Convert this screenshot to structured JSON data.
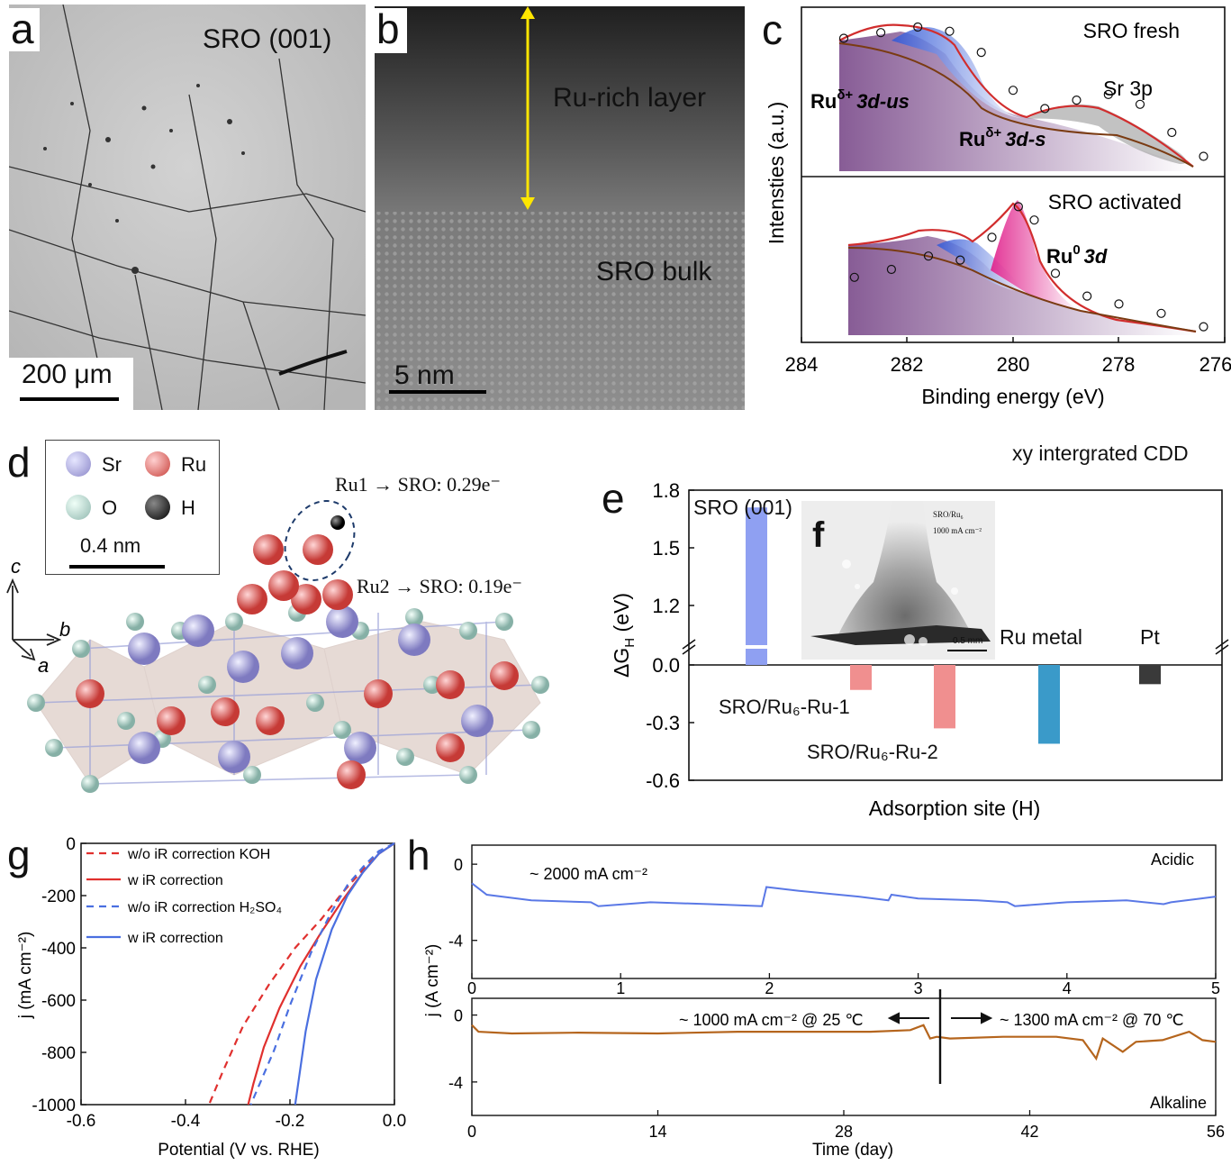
{
  "panels": {
    "a": {
      "letter": "a",
      "title": "SRO (001)",
      "scalebar": "200 μm"
    },
    "b": {
      "letter": "b",
      "top_label": "Ru-rich layer",
      "bottom_label": "SRO bulk",
      "scalebar": "5 nm"
    },
    "c": {
      "letter": "c",
      "top_title": "SRO fresh",
      "bottom_title": "SRO activated",
      "ann_us": "Ru",
      "ann_us_sup": "δ+",
      "ann_us_tail": "3d-us",
      "ann_s": "Ru",
      "ann_s_sup": "δ+",
      "ann_s_tail": "3d-s",
      "ann_sr": "Sr 3p",
      "ann_ru0": "Ru",
      "ann_ru0_sup": "0",
      "ann_ru0_tail": "3d",
      "ylabel": "Intensties (a.u.)",
      "xlabel": "Binding energy (eV)",
      "xticks": [
        "284",
        "282",
        "280",
        "278",
        "276"
      ]
    },
    "d": {
      "letter": "d",
      "legend": [
        "Sr",
        "Ru",
        "O",
        "H"
      ],
      "scalebar": "0.4 nm",
      "ru1": "Ru1 → SRO: 0.29e⁻",
      "ru2": "Ru2 → SRO: 0.19e⁻",
      "axis_c": "c",
      "axis_b": "b",
      "axis_a": "a"
    },
    "e": {
      "letter": "e",
      "header": "xy intergrated CDD",
      "ylabel": "ΔG",
      "ylabel_sub": "H",
      "ylabel_unit": " (eV)",
      "xlabel": "Adsorption site (H)"
    },
    "f": {
      "letter": "f",
      "inset_line1": "SRO/Ru₆",
      "inset_line2": "1000 mA cm⁻²",
      "scalebar": "0.5 mm"
    },
    "g": {
      "letter": "g",
      "ylabel": "j (mA cm⁻²)",
      "xlabel": "Potential (V vs. RHE)",
      "legend": [
        "w/o iR correction  KOH",
        "w iR correction",
        "w/o iR correction H₂SO₄",
        "w iR correction"
      ]
    },
    "h": {
      "letter": "h",
      "ylabel": "j (A cm⁻²)",
      "xlabel": "Time (day)",
      "acidic": "Acidic",
      "alkaline": "Alkaline",
      "acid_note": "~ 2000 mA cm⁻²",
      "alk_left": "~ 1000 mA cm⁻² @ 25 ℃",
      "alk_right": "~ 1300 mA cm⁻² @ 70 ℃"
    }
  },
  "chart_data": [
    {
      "type": "line",
      "panel": "c",
      "title": "SRO fresh / SRO activated",
      "xlabel": "Binding energy (eV)",
      "ylabel": "Intensties (a.u.)",
      "xlim": [
        284,
        276
      ],
      "xticks": [
        284,
        282,
        280,
        278,
        276
      ],
      "series": [
        {
          "name": "SRO fresh",
          "x": [
            283.2,
            282.5,
            281.8,
            281.2,
            280.6,
            280.0,
            279.4,
            278.8,
            278.2,
            277.6,
            277.0,
            276.4
          ],
          "y": [
            0.92,
            0.96,
            1.0,
            0.97,
            0.82,
            0.55,
            0.42,
            0.48,
            0.52,
            0.45,
            0.25,
            0.08
          ]
        },
        {
          "name": "SRO activated",
          "x": [
            283.0,
            282.3,
            281.6,
            281.0,
            280.4,
            279.9,
            279.6,
            279.2,
            278.6,
            278.0,
            277.2,
            276.4
          ],
          "y": [
            0.42,
            0.48,
            0.58,
            0.55,
            0.72,
            0.95,
            0.85,
            0.45,
            0.28,
            0.22,
            0.15,
            0.05
          ]
        }
      ]
    },
    {
      "type": "bar",
      "panel": "e",
      "ylabel": "ΔG_H (eV)",
      "xlabel": "Adsorption site (H)",
      "categories": [
        "SRO (001)",
        "SRO/Ru₆-Ru-1",
        "SRO/Ru₆-Ru-2",
        "Ru metal",
        "Pt"
      ],
      "values": [
        1.62,
        -0.13,
        -0.33,
        -0.41,
        -0.1
      ],
      "colors": [
        "#8fa0f2",
        "#f08f8f",
        "#f08f8f",
        "#3a9ac9",
        "#3a3a3a"
      ],
      "ylim": [
        -0.6,
        1.8
      ],
      "yticks": [
        "1.8",
        "1.5",
        "1.2",
        "0.0",
        "-0.3",
        "-0.6"
      ]
    },
    {
      "type": "line",
      "panel": "g",
      "xlabel": "Potential (V vs. RHE)",
      "ylabel": "j (mA cm⁻²)",
      "xlim": [
        -0.6,
        0.0
      ],
      "ylim": [
        -1000,
        0
      ],
      "xticks": [
        "-0.6",
        "-0.4",
        "-0.2",
        "0.0"
      ],
      "yticks": [
        "0",
        "-200",
        "-400",
        "-600",
        "-800",
        "-1000"
      ],
      "series": [
        {
          "name": "w/o iR correction  KOH",
          "color": "#e0302e",
          "dash": true,
          "x": [
            0.0,
            -0.03,
            -0.06,
            -0.1,
            -0.14,
            -0.19,
            -0.24,
            -0.29,
            -0.33,
            -0.355
          ],
          "y": [
            0,
            -40,
            -100,
            -190,
            -290,
            -400,
            -540,
            -700,
            -880,
            -1000
          ]
        },
        {
          "name": "w iR correction",
          "color": "#e0302e",
          "dash": false,
          "x": [
            0.0,
            -0.03,
            -0.06,
            -0.1,
            -0.14,
            -0.18,
            -0.22,
            -0.25,
            -0.27,
            -0.28
          ],
          "y": [
            0,
            -40,
            -110,
            -220,
            -340,
            -470,
            -630,
            -780,
            -920,
            -1000
          ]
        },
        {
          "name": "w/o iR correction H₂SO₄",
          "color": "#4a6fe0",
          "dash": true,
          "x": [
            0.0,
            -0.03,
            -0.06,
            -0.09,
            -0.12,
            -0.16,
            -0.2,
            -0.23,
            -0.26,
            -0.275
          ],
          "y": [
            0,
            -30,
            -90,
            -160,
            -260,
            -420,
            -620,
            -790,
            -930,
            -1000
          ]
        },
        {
          "name": "w iR correction",
          "color": "#4a6fe0",
          "dash": false,
          "x": [
            0.0,
            -0.03,
            -0.06,
            -0.09,
            -0.12,
            -0.15,
            -0.17,
            -0.18,
            -0.19
          ],
          "y": [
            0,
            -40,
            -110,
            -200,
            -330,
            -520,
            -720,
            -860,
            -1000
          ]
        }
      ]
    },
    {
      "type": "line",
      "panel": "h-top",
      "title": "Acidic",
      "xlim": [
        0,
        5
      ],
      "ylim": [
        -6,
        1
      ],
      "xticks": [
        "0",
        "1",
        "2",
        "3",
        "4",
        "5"
      ],
      "yticks": [
        "0",
        "-4"
      ],
      "series": [
        {
          "name": "Acidic",
          "color": "#5a78e6",
          "x": [
            0,
            0.1,
            0.4,
            0.8,
            0.85,
            1.2,
            1.6,
            1.95,
            1.98,
            2.2,
            2.6,
            2.8,
            2.82,
            3.0,
            3.4,
            3.6,
            3.65,
            4.0,
            4.4,
            4.65,
            4.7,
            4.9,
            5.0
          ],
          "y": [
            -1.0,
            -1.6,
            -1.9,
            -2.0,
            -2.2,
            -2.0,
            -2.1,
            -2.2,
            -1.2,
            -1.4,
            -1.7,
            -1.9,
            -1.6,
            -1.8,
            -1.9,
            -2.0,
            -2.2,
            -2.0,
            -1.9,
            -2.1,
            -2.0,
            -1.8,
            -1.7
          ]
        }
      ]
    },
    {
      "type": "line",
      "panel": "h-bottom",
      "title": "Alkaline",
      "xlabel": "Time (day)",
      "xlim": [
        0,
        56
      ],
      "ylim": [
        -6,
        1
      ],
      "xticks": [
        "0",
        "14",
        "28",
        "42",
        "56"
      ],
      "yticks": [
        "0",
        "-4"
      ],
      "series": [
        {
          "name": "Alkaline",
          "color": "#b5651d",
          "x": [
            0,
            0.5,
            3,
            8,
            14,
            20,
            26,
            30,
            33,
            34,
            34.5,
            35,
            36,
            40,
            44,
            46,
            47,
            47.5,
            49,
            50,
            52,
            54,
            55,
            56
          ],
          "y": [
            -0.6,
            -1.0,
            -1.1,
            -1.05,
            -1.1,
            -1.0,
            -1.0,
            -1.0,
            -0.9,
            -0.6,
            -1.4,
            -1.3,
            -1.4,
            -1.3,
            -1.3,
            -1.5,
            -2.6,
            -1.4,
            -2.2,
            -1.6,
            -1.5,
            -1.0,
            -1.5,
            -1.6
          ]
        }
      ]
    }
  ]
}
